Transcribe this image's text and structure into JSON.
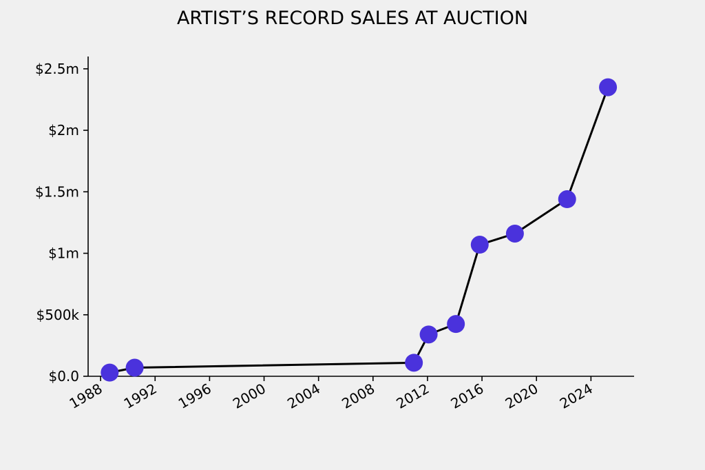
{
  "chart_data": {
    "type": "line",
    "title": "ARTIST’S RECORD SALES AT AUCTION",
    "xlabel": "",
    "ylabel": "",
    "x": [
      "1988-09",
      "1990-07",
      "2011-01",
      "2012-02",
      "2014-02",
      "2015-11",
      "2018-06",
      "2022-04",
      "2025-04"
    ],
    "series": [
      {
        "values": [
          30000,
          70000,
          110000,
          340000,
          425000,
          1070000,
          1160000,
          1440000,
          2350000
        ]
      }
    ],
    "xlim": [
      "1987-02",
      "2027-03"
    ],
    "ylim": [
      0,
      2600000
    ],
    "x_ticks": [
      "1988",
      "1992",
      "1996",
      "2000",
      "2004",
      "2008",
      "2012",
      "2016",
      "2020",
      "2024"
    ],
    "x_tick_values": [
      1988,
      1992,
      1996,
      2000,
      2004,
      2008,
      2012,
      2016,
      2020,
      2024
    ],
    "y_ticks": [
      "$0.0",
      "$500k",
      "$1m",
      "$1.5m",
      "$2m",
      "$2.5m"
    ],
    "y_tick_values": [
      0,
      500000,
      1000000,
      1500000,
      2000000,
      2500000
    ],
    "grid": false,
    "legend": "none",
    "colors": {
      "marker": "#4a32dc",
      "line": "#000000",
      "background": "#f0f0f0"
    }
  }
}
